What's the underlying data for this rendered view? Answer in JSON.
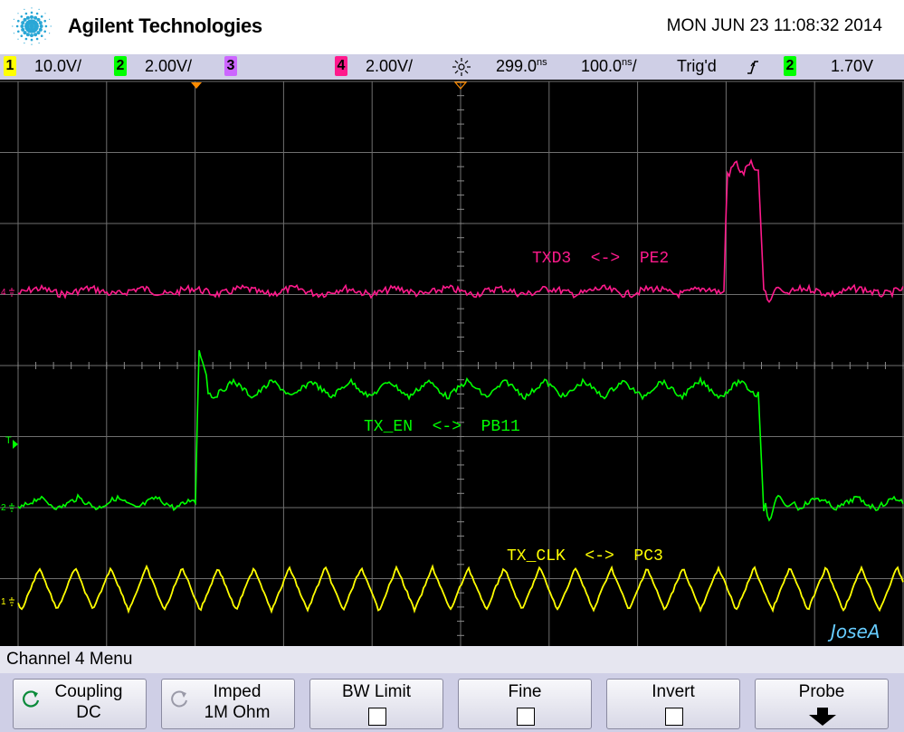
{
  "header": {
    "brand": "Agilent Technologies",
    "datetime": "MON JUN 23 11:08:32 2014"
  },
  "status": {
    "ch1_num": "1",
    "ch1_scale": "10.0V/",
    "ch2_num": "2",
    "ch2_scale": "2.00V/",
    "ch3_num": "3",
    "ch4_num": "4",
    "ch4_scale": "2.00V/",
    "delay": "299.0ns",
    "timebase": "100.0ns/",
    "trigger_state": "Trig'd",
    "trigger_edge": "rising-edge-icon",
    "trig_src_num": "2",
    "trig_level": "1.70V"
  },
  "colors": {
    "ch1": "#ffff00",
    "ch2": "#00ff00",
    "ch3": "#cc66ff",
    "ch4": "#ff1a8c",
    "grid": "#7a7a7a",
    "watermark": "#66ccff"
  },
  "scope": {
    "labels": {
      "ch4": "TXD3  <->  PE2",
      "ch2": "TX_EN  <->  PB11",
      "ch1": "TX_CLK  <->  PC3"
    },
    "markers": {
      "ch4": "4",
      "ch2": "2",
      "ch1": "1",
      "trigger": "T"
    },
    "watermark": "JoseA"
  },
  "menu": {
    "title": "Channel 4  Menu",
    "softkeys": [
      {
        "l1": "Coupling",
        "l2": "DC"
      },
      {
        "l1": "Imped",
        "l2": "1M Ohm"
      },
      {
        "l1": "BW Limit"
      },
      {
        "l1": "Fine"
      },
      {
        "l1": "Invert"
      },
      {
        "l1": "Probe"
      }
    ]
  }
}
